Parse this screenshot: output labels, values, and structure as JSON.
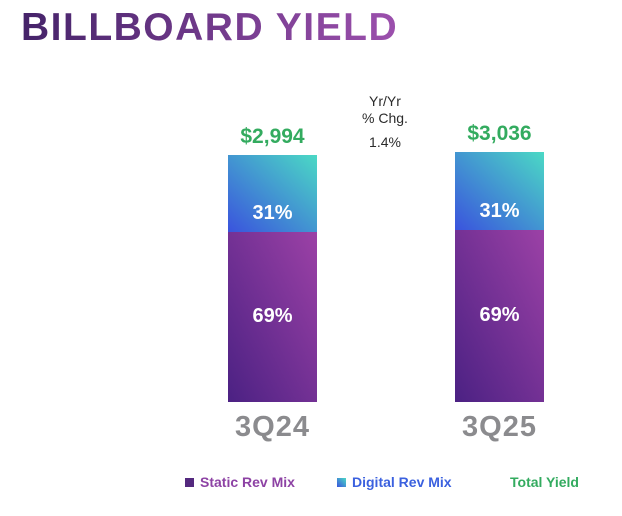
{
  "header": {
    "title": "BILLBOARD YIELD"
  },
  "chart_data": {
    "type": "bar",
    "stacked": true,
    "title": "BILLBOARD YIELD",
    "categories": [
      "3Q24",
      "3Q25"
    ],
    "series": [
      {
        "name": "Static Rev Mix",
        "values": [
          69,
          69
        ],
        "labels": [
          "69%",
          "69%"
        ]
      },
      {
        "name": "Digital Rev Mix",
        "values": [
          31,
          31
        ],
        "labels": [
          "31%",
          "31%"
        ]
      }
    ],
    "totals": {
      "name": "Total Yield",
      "labels": [
        "$2,994",
        "$3,036"
      ],
      "values": [
        2994,
        3036
      ]
    },
    "yoy": {
      "heading_line1": "Yr/Yr",
      "heading_line2": "% Chg.",
      "value": "1.4%"
    },
    "legend_position": "bottom",
    "axes": "none (category labels only, no gridlines)"
  },
  "legend": {
    "items": [
      {
        "label": "Static Rev Mix"
      },
      {
        "label": "Digital Rev Mix"
      },
      {
        "label": "Total Yield"
      }
    ]
  },
  "colors": {
    "title_from": "#452369",
    "title_to": "#9c50ad",
    "total_green": "#33ab5f",
    "category_gray": "#8b8b8e",
    "yoy_text": "#2b2b2b",
    "static_from": "#4b2183",
    "static_to": "#9c41a6",
    "digital_from": "#3a53dd",
    "digital_to": "#4bd9c5",
    "legend_static_text": "#8d42a4",
    "legend_static_marker": "#54297e",
    "legend_digital_text": "#3b61df"
  }
}
